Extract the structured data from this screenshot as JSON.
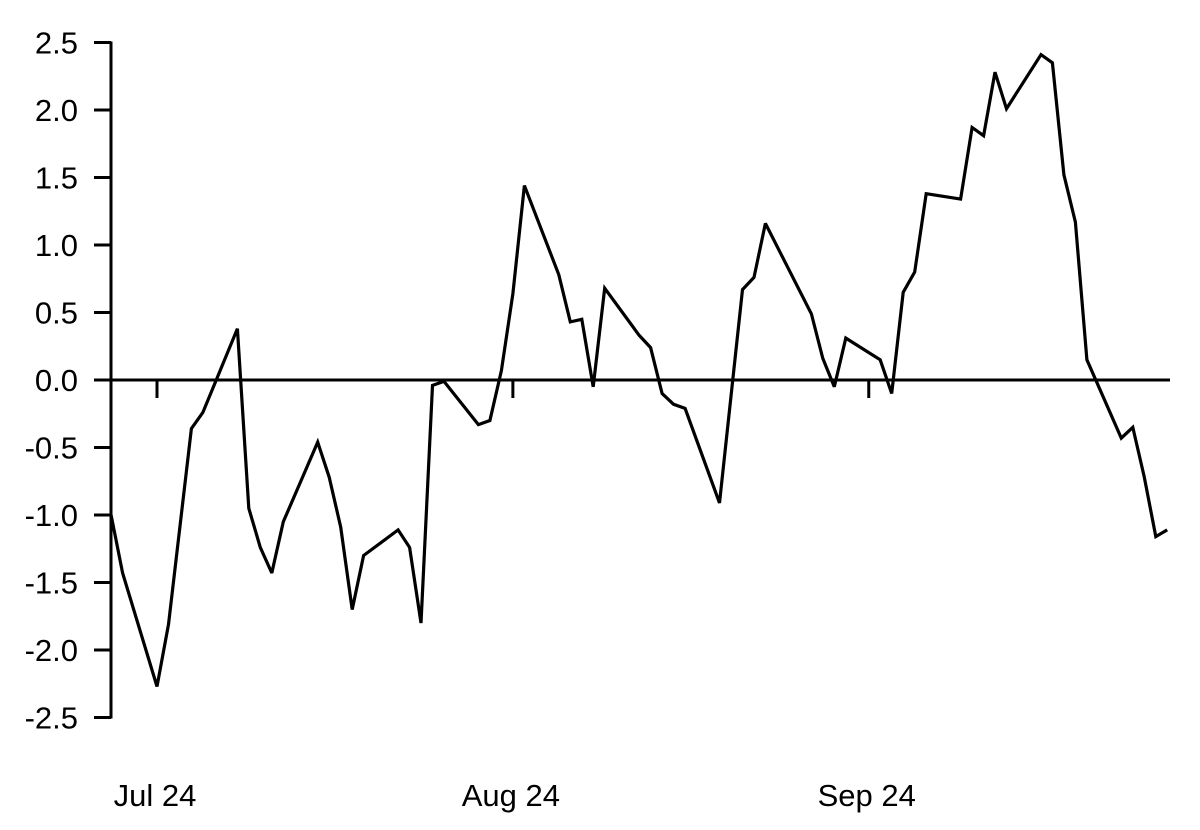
{
  "chart_data": {
    "type": "line",
    "title": "",
    "xlabel": "",
    "ylabel": "",
    "ylim": [
      -2.5,
      2.5
    ],
    "xlim": [
      "2024-06-27",
      "2024-09-27"
    ],
    "yticks": [
      "2.5",
      "2.0",
      "1.5",
      "1.0",
      "0.5",
      "0.0",
      "-0.5",
      "-1.0",
      "-1.5",
      "-2.0",
      "-2.5"
    ],
    "ytick_values": [
      2.5,
      2.0,
      1.5,
      1.0,
      0.5,
      0.0,
      -0.5,
      -1.0,
      -1.5,
      -2.0,
      -2.5
    ],
    "xticks": [
      {
        "label": "Jul 24",
        "date": "2024-07-01"
      },
      {
        "label": "Aug 24",
        "date": "2024-08-01"
      },
      {
        "label": "Sep 24",
        "date": "2024-09-01"
      }
    ],
    "grid": false,
    "zero_line": true,
    "line_color": "#000000",
    "series": [
      {
        "x": [
          "2024-06-27",
          "2024-06-28",
          "2024-07-01",
          "2024-07-02",
          "2024-07-04",
          "2024-07-05",
          "2024-07-08",
          "2024-07-09",
          "2024-07-10",
          "2024-07-11",
          "2024-07-12",
          "2024-07-15",
          "2024-07-16",
          "2024-07-17",
          "2024-07-18",
          "2024-07-19",
          "2024-07-22",
          "2024-07-23",
          "2024-07-24",
          "2024-07-25",
          "2024-07-26",
          "2024-07-29",
          "2024-07-30",
          "2024-07-31",
          "2024-08-01",
          "2024-08-02",
          "2024-08-05",
          "2024-08-06",
          "2024-08-07",
          "2024-08-08",
          "2024-08-09",
          "2024-08-12",
          "2024-08-13",
          "2024-08-14",
          "2024-08-15",
          "2024-08-16",
          "2024-08-19",
          "2024-08-21",
          "2024-08-22",
          "2024-08-23",
          "2024-08-27",
          "2024-08-28",
          "2024-08-29",
          "2024-08-30",
          "2024-09-02",
          "2024-09-03",
          "2024-09-04",
          "2024-09-05",
          "2024-09-06",
          "2024-09-09",
          "2024-09-10",
          "2024-09-11",
          "2024-09-12",
          "2024-09-13",
          "2024-09-16",
          "2024-09-17",
          "2024-09-18",
          "2024-09-19",
          "2024-09-20",
          "2024-09-23",
          "2024-09-24",
          "2024-09-25",
          "2024-09-26",
          "2024-09-27"
        ],
        "values": [
          -1.0,
          -1.43,
          -2.27,
          -1.81,
          -0.36,
          -0.24,
          0.38,
          -0.95,
          -1.24,
          -1.43,
          -1.05,
          -0.46,
          -0.72,
          -1.09,
          -1.7,
          -1.3,
          -1.11,
          -1.24,
          -1.8,
          -0.04,
          -0.01,
          -0.33,
          -0.3,
          0.07,
          0.64,
          1.44,
          0.78,
          0.43,
          0.45,
          -0.05,
          0.68,
          0.33,
          0.24,
          -0.1,
          -0.18,
          -0.21,
          -0.91,
          0.67,
          0.76,
          1.16,
          0.49,
          0.16,
          -0.05,
          0.31,
          0.15,
          -0.1,
          0.65,
          0.8,
          1.38,
          1.34,
          1.87,
          1.81,
          2.28,
          2.01,
          2.41,
          2.35,
          1.52,
          1.17,
          0.15,
          -0.43,
          -0.35,
          -0.72,
          -1.16,
          -1.11
        ]
      }
    ]
  }
}
